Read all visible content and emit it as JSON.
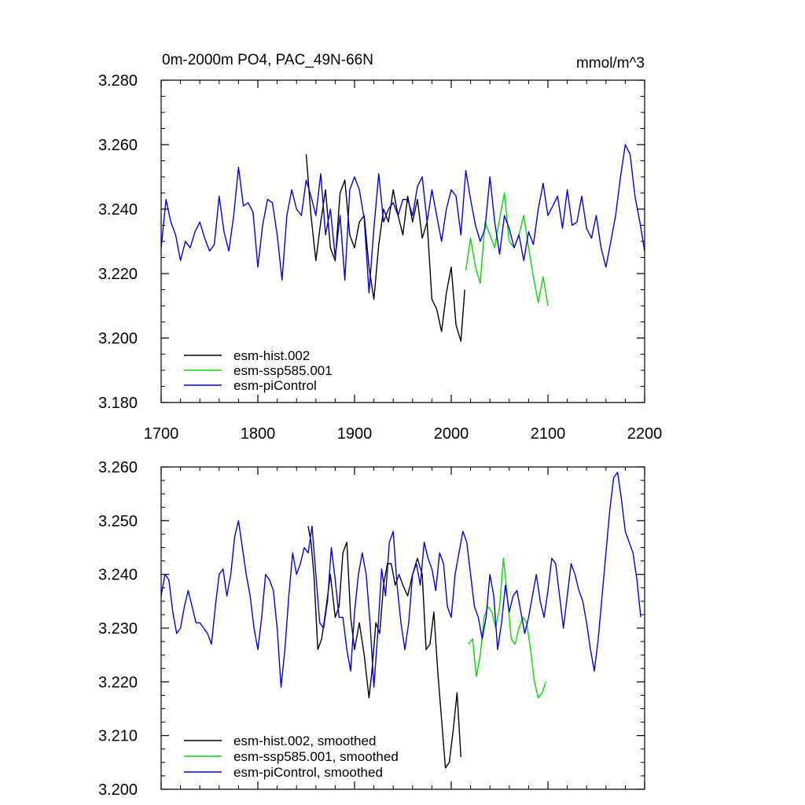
{
  "chart_data": [
    {
      "type": "line",
      "title": "0m-2000m PO4, PAC_49N-66N",
      "units_label": "mmol/m^3",
      "xlim": [
        1700,
        2200
      ],
      "ylim": [
        3.18,
        3.28
      ],
      "xticks": [
        "1700",
        "1800",
        "1900",
        "2000",
        "2100",
        "2200"
      ],
      "yticks": [
        "3.180",
        "3.200",
        "3.220",
        "3.240",
        "3.260",
        "3.280"
      ],
      "legend_position": "bottom-left",
      "grid": false,
      "series": [
        {
          "name": "esm-hist.002",
          "color": "#000000",
          "x": [
            1850,
            1855,
            1860,
            1865,
            1870,
            1875,
            1880,
            1885,
            1890,
            1895,
            1900,
            1905,
            1910,
            1915,
            1920,
            1925,
            1930,
            1935,
            1940,
            1945,
            1950,
            1955,
            1960,
            1965,
            1970,
            1975,
            1980,
            1985,
            1990,
            1995,
            2000,
            2005,
            2010,
            2014
          ],
          "values": [
            3.257,
            3.238,
            3.224,
            3.236,
            3.246,
            3.228,
            3.224,
            3.245,
            3.249,
            3.232,
            3.228,
            3.236,
            3.238,
            3.222,
            3.212,
            3.229,
            3.24,
            3.236,
            3.246,
            3.238,
            3.232,
            3.244,
            3.236,
            3.243,
            3.231,
            3.236,
            3.212,
            3.209,
            3.202,
            3.214,
            3.222,
            3.204,
            3.199,
            3.215
          ]
        },
        {
          "name": "esm-ssp585.001",
          "color": "#00dd00",
          "x": [
            2015,
            2020,
            2025,
            2030,
            2035,
            2040,
            2045,
            2050,
            2055,
            2060,
            2065,
            2070,
            2075,
            2080,
            2085,
            2090,
            2095,
            2100
          ],
          "values": [
            3.221,
            3.231,
            3.222,
            3.217,
            3.236,
            3.232,
            3.228,
            3.237,
            3.245,
            3.23,
            3.228,
            3.232,
            3.238,
            3.228,
            3.219,
            3.211,
            3.219,
            3.21
          ]
        },
        {
          "name": "esm-piControl",
          "color": "#0000ee",
          "x": [
            1700,
            1705,
            1710,
            1715,
            1720,
            1725,
            1730,
            1735,
            1740,
            1745,
            1750,
            1755,
            1760,
            1765,
            1770,
            1775,
            1780,
            1785,
            1790,
            1795,
            1800,
            1805,
            1810,
            1815,
            1820,
            1825,
            1830,
            1835,
            1840,
            1845,
            1850,
            1855,
            1860,
            1865,
            1870,
            1875,
            1880,
            1885,
            1890,
            1895,
            1900,
            1905,
            1910,
            1915,
            1920,
            1925,
            1930,
            1935,
            1940,
            1945,
            1950,
            1955,
            1960,
            1965,
            1970,
            1975,
            1980,
            1985,
            1990,
            1995,
            2000,
            2005,
            2010,
            2015,
            2020,
            2025,
            2030,
            2035,
            2040,
            2045,
            2050,
            2055,
            2060,
            2065,
            2070,
            2075,
            2080,
            2085,
            2090,
            2095,
            2100,
            2105,
            2110,
            2115,
            2120,
            2125,
            2130,
            2135,
            2140,
            2145,
            2150,
            2155,
            2160,
            2165,
            2170,
            2175,
            2180,
            2185,
            2190,
            2195,
            2200
          ],
          "values": [
            3.228,
            3.243,
            3.236,
            3.232,
            3.224,
            3.23,
            3.228,
            3.233,
            3.236,
            3.231,
            3.227,
            3.229,
            3.244,
            3.233,
            3.227,
            3.238,
            3.253,
            3.241,
            3.242,
            3.239,
            3.222,
            3.235,
            3.243,
            3.242,
            3.232,
            3.218,
            3.238,
            3.246,
            3.24,
            3.238,
            3.249,
            3.244,
            3.238,
            3.251,
            3.232,
            3.24,
            3.225,
            3.238,
            3.218,
            3.246,
            3.25,
            3.246,
            3.237,
            3.214,
            3.234,
            3.251,
            3.236,
            3.24,
            3.242,
            3.238,
            3.243,
            3.243,
            3.238,
            3.247,
            3.25,
            3.236,
            3.246,
            3.238,
            3.23,
            3.24,
            3.246,
            3.244,
            3.232,
            3.252,
            3.243,
            3.235,
            3.23,
            3.234,
            3.25,
            3.236,
            3.226,
            3.238,
            3.234,
            3.228,
            3.232,
            3.224,
            3.233,
            3.229,
            3.24,
            3.248,
            3.238,
            3.241,
            3.244,
            3.234,
            3.246,
            3.235,
            3.236,
            3.244,
            3.234,
            3.231,
            3.238,
            3.228,
            3.222,
            3.23,
            3.238,
            3.25,
            3.26,
            3.257,
            3.244,
            3.236,
            3.227
          ]
        }
      ]
    },
    {
      "type": "line",
      "title": "",
      "xlim": [
        1700,
        2200
      ],
      "ylim": [
        3.2,
        3.26
      ],
      "yticks": [
        "3.200",
        "3.210",
        "3.220",
        "3.230",
        "3.240",
        "3.250",
        "3.260"
      ],
      "legend_position": "bottom-left",
      "grid": false,
      "series": [
        {
          "name": "esm-hist.002, smoothed",
          "color": "#000000",
          "x": [
            1852,
            1855,
            1858,
            1862,
            1866,
            1870,
            1875,
            1880,
            1884,
            1888,
            1892,
            1896,
            1900,
            1905,
            1910,
            1915,
            1918,
            1922,
            1926,
            1930,
            1934,
            1938,
            1942,
            1946,
            1950,
            1955,
            1960,
            1965,
            1970,
            1974,
            1978,
            1982,
            1986,
            1990,
            1994,
            1998,
            2002,
            2006,
            2010
          ],
          "values": [
            3.249,
            3.246,
            3.24,
            3.226,
            3.228,
            3.233,
            3.24,
            3.232,
            3.234,
            3.244,
            3.246,
            3.232,
            3.226,
            3.231,
            3.225,
            3.217,
            3.222,
            3.231,
            3.229,
            3.238,
            3.242,
            3.242,
            3.238,
            3.24,
            3.238,
            3.236,
            3.24,
            3.243,
            3.24,
            3.226,
            3.227,
            3.233,
            3.222,
            3.213,
            3.204,
            3.205,
            3.211,
            3.218,
            3.206
          ]
        },
        {
          "name": "esm-ssp585.001, smoothed",
          "color": "#00dd00",
          "x": [
            2018,
            2022,
            2026,
            2030,
            2034,
            2038,
            2042,
            2046,
            2050,
            2054,
            2058,
            2062,
            2066,
            2070,
            2074,
            2078,
            2082,
            2086,
            2090,
            2094,
            2098
          ],
          "values": [
            3.227,
            3.228,
            3.221,
            3.225,
            3.232,
            3.234,
            3.233,
            3.23,
            3.234,
            3.243,
            3.236,
            3.228,
            3.227,
            3.23,
            3.232,
            3.231,
            3.226,
            3.22,
            3.217,
            3.218,
            3.22
          ]
        },
        {
          "name": "esm-piControl, smoothed",
          "color": "#0000ee",
          "x": [
            1700,
            1704,
            1708,
            1712,
            1716,
            1720,
            1724,
            1728,
            1732,
            1736,
            1740,
            1744,
            1748,
            1752,
            1756,
            1760,
            1764,
            1768,
            1772,
            1776,
            1780,
            1784,
            1788,
            1792,
            1796,
            1800,
            1804,
            1808,
            1812,
            1816,
            1820,
            1824,
            1828,
            1832,
            1836,
            1840,
            1844,
            1848,
            1852,
            1856,
            1860,
            1864,
            1868,
            1872,
            1876,
            1880,
            1884,
            1888,
            1892,
            1896,
            1900,
            1904,
            1908,
            1912,
            1916,
            1920,
            1924,
            1928,
            1932,
            1936,
            1940,
            1944,
            1948,
            1952,
            1956,
            1960,
            1964,
            1968,
            1972,
            1976,
            1980,
            1984,
            1988,
            1992,
            1996,
            2000,
            2004,
            2008,
            2012,
            2016,
            2020,
            2024,
            2028,
            2032,
            2036,
            2040,
            2044,
            2048,
            2052,
            2056,
            2060,
            2064,
            2068,
            2072,
            2076,
            2080,
            2084,
            2088,
            2092,
            2096,
            2100,
            2104,
            2108,
            2112,
            2116,
            2120,
            2124,
            2128,
            2132,
            2136,
            2140,
            2144,
            2148,
            2152,
            2156,
            2160,
            2164,
            2168,
            2172,
            2176,
            2180,
            2184,
            2188,
            2192,
            2196
          ],
          "values": [
            3.236,
            3.24,
            3.239,
            3.233,
            3.229,
            3.23,
            3.234,
            3.237,
            3.234,
            3.231,
            3.231,
            3.23,
            3.229,
            3.227,
            3.234,
            3.24,
            3.241,
            3.236,
            3.24,
            3.247,
            3.25,
            3.245,
            3.24,
            3.236,
            3.23,
            3.226,
            3.232,
            3.24,
            3.239,
            3.237,
            3.23,
            3.219,
            3.226,
            3.236,
            3.244,
            3.24,
            3.242,
            3.245,
            3.244,
            3.249,
            3.24,
            3.231,
            3.23,
            3.235,
            3.245,
            3.239,
            3.232,
            3.232,
            3.226,
            3.222,
            3.233,
            3.24,
            3.244,
            3.24,
            3.231,
            3.219,
            3.229,
            3.241,
            3.236,
            3.246,
            3.248,
            3.238,
            3.231,
            3.226,
            3.231,
            3.24,
            3.242,
            3.238,
            3.246,
            3.243,
            3.241,
            3.237,
            3.244,
            3.242,
            3.234,
            3.232,
            3.24,
            3.244,
            3.248,
            3.246,
            3.24,
            3.234,
            3.232,
            3.228,
            3.232,
            3.24,
            3.236,
            3.226,
            3.231,
            3.238,
            3.233,
            3.236,
            3.237,
            3.233,
            3.229,
            3.232,
            3.236,
            3.24,
            3.235,
            3.232,
            3.237,
            3.243,
            3.242,
            3.236,
            3.23,
            3.236,
            3.242,
            3.24,
            3.237,
            3.235,
            3.231,
            3.226,
            3.222,
            3.228,
            3.236,
            3.244,
            3.252,
            3.258,
            3.259,
            3.254,
            3.248,
            3.246,
            3.244,
            3.239,
            3.232
          ]
        }
      ]
    }
  ]
}
